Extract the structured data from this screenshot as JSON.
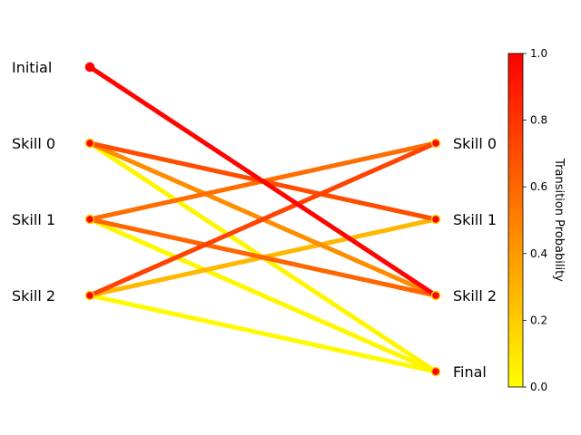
{
  "chart_data": {
    "type": "diagram",
    "left_nodes": [
      "Initial",
      "Skill 0",
      "Skill 1",
      "Skill 2"
    ],
    "right_nodes": [
      "Skill 0",
      "Skill 1",
      "Skill 2",
      "Final"
    ],
    "edges": [
      {
        "from": "Initial",
        "to": "Skill 2",
        "p": 0.98
      },
      {
        "from": "Skill 0",
        "to": "Skill 1",
        "p": 0.7
      },
      {
        "from": "Skill 0",
        "to": "Skill 2",
        "p": 0.45
      },
      {
        "from": "Skill 0",
        "to": "Final",
        "p": 0.04
      },
      {
        "from": "Skill 1",
        "to": "Skill 0",
        "p": 0.57
      },
      {
        "from": "Skill 1",
        "to": "Skill 2",
        "p": 0.6
      },
      {
        "from": "Skill 1",
        "to": "Final",
        "p": 0.03
      },
      {
        "from": "Skill 2",
        "to": "Skill 0",
        "p": 0.74
      },
      {
        "from": "Skill 2",
        "to": "Skill 1",
        "p": 0.28
      },
      {
        "from": "Skill 2",
        "to": "Final",
        "p": 0.02
      }
    ],
    "colorbar": {
      "label": "Transition Probability",
      "range": [
        0.0,
        1.0
      ],
      "ticks": [
        "0.0",
        "0.2",
        "0.4",
        "0.6",
        "0.8",
        "1.0"
      ],
      "colormap": [
        "#ffff00",
        "#ff0000"
      ]
    },
    "node_fill": "#ff0000",
    "node_edge": "#ffcc00"
  }
}
